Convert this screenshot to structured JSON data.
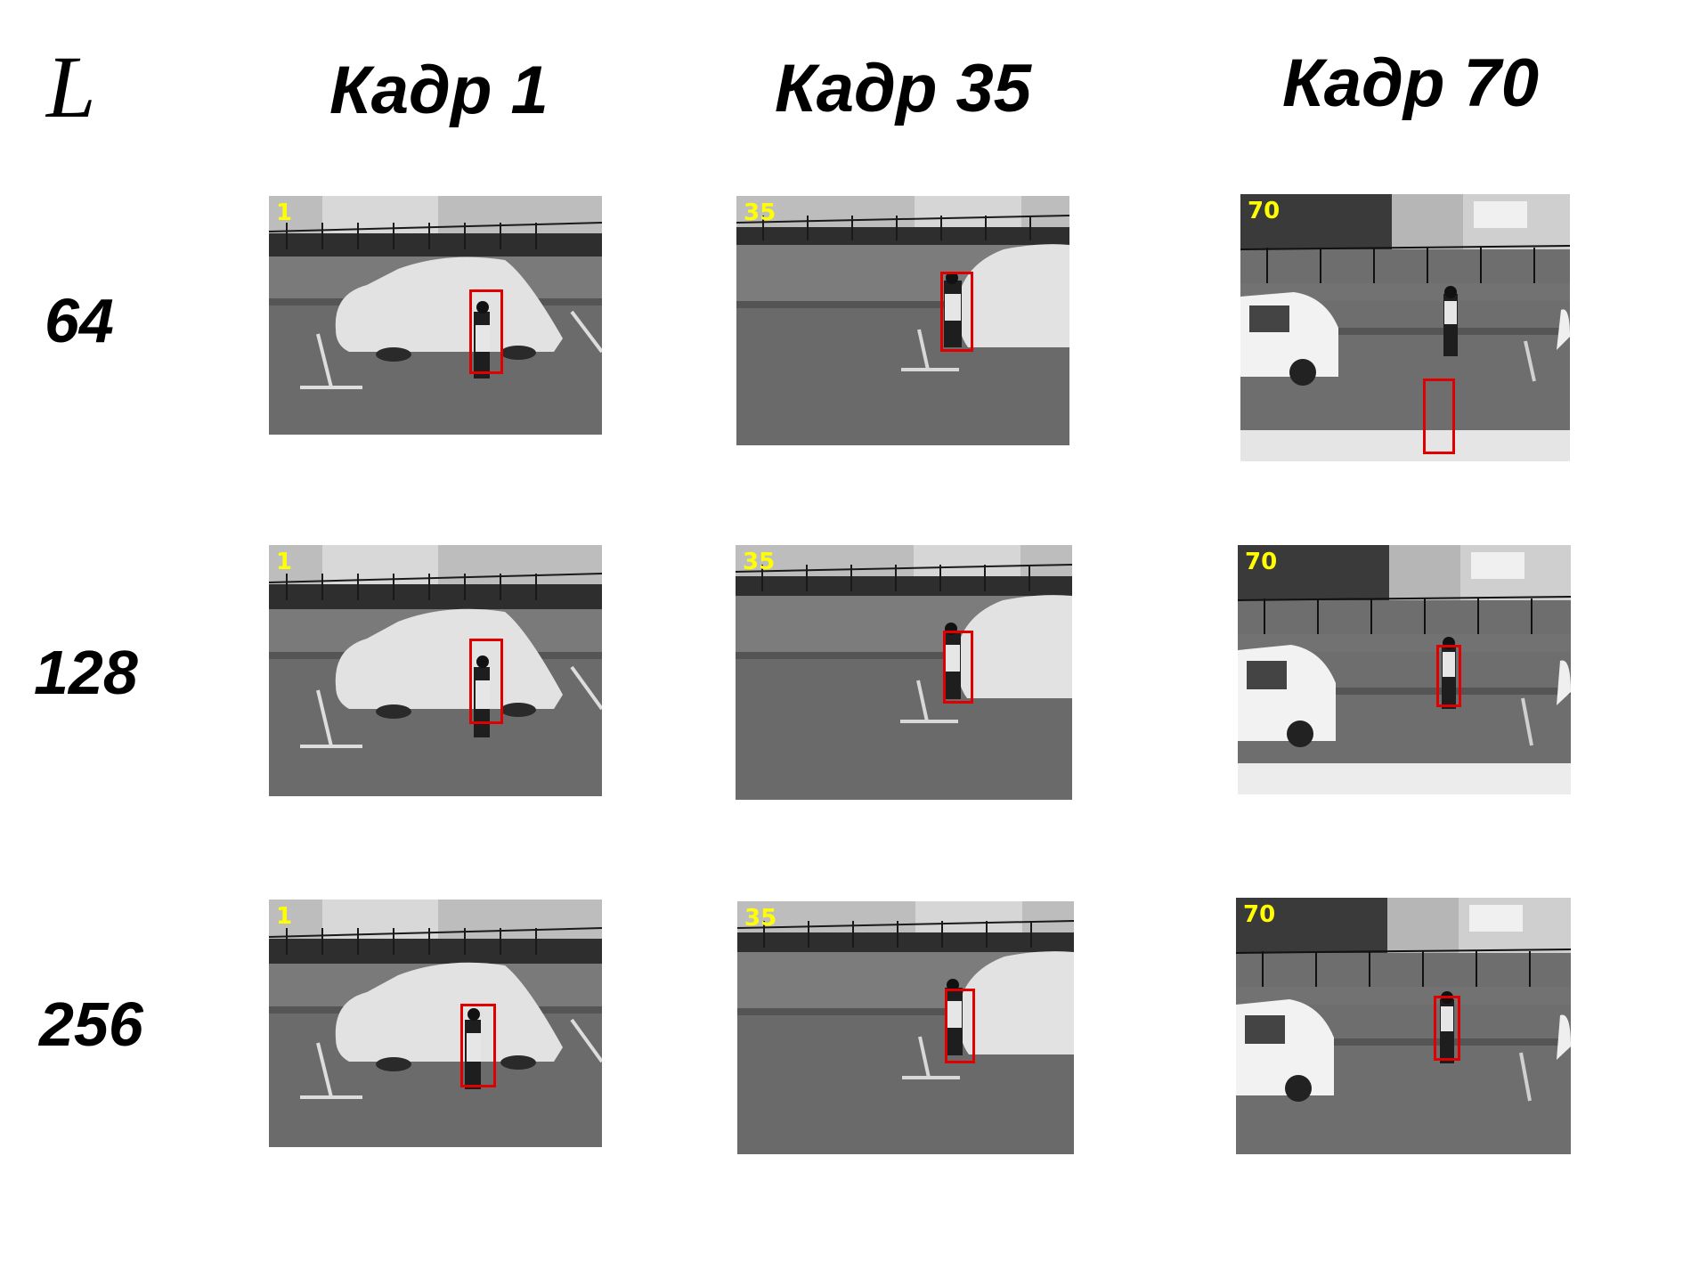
{
  "param_symbol": "L",
  "columns": [
    {
      "label": "Кадр 1"
    },
    {
      "label": "Кадр 35"
    },
    {
      "label": "Кадр 70"
    }
  ],
  "rows": [
    {
      "label": "64"
    },
    {
      "label": "128"
    },
    {
      "label": "256"
    }
  ],
  "frame_numbers": [
    "1",
    "35",
    "70"
  ],
  "colors": {
    "frame_number": "#ffff00",
    "tracking_box": "#e00000"
  }
}
